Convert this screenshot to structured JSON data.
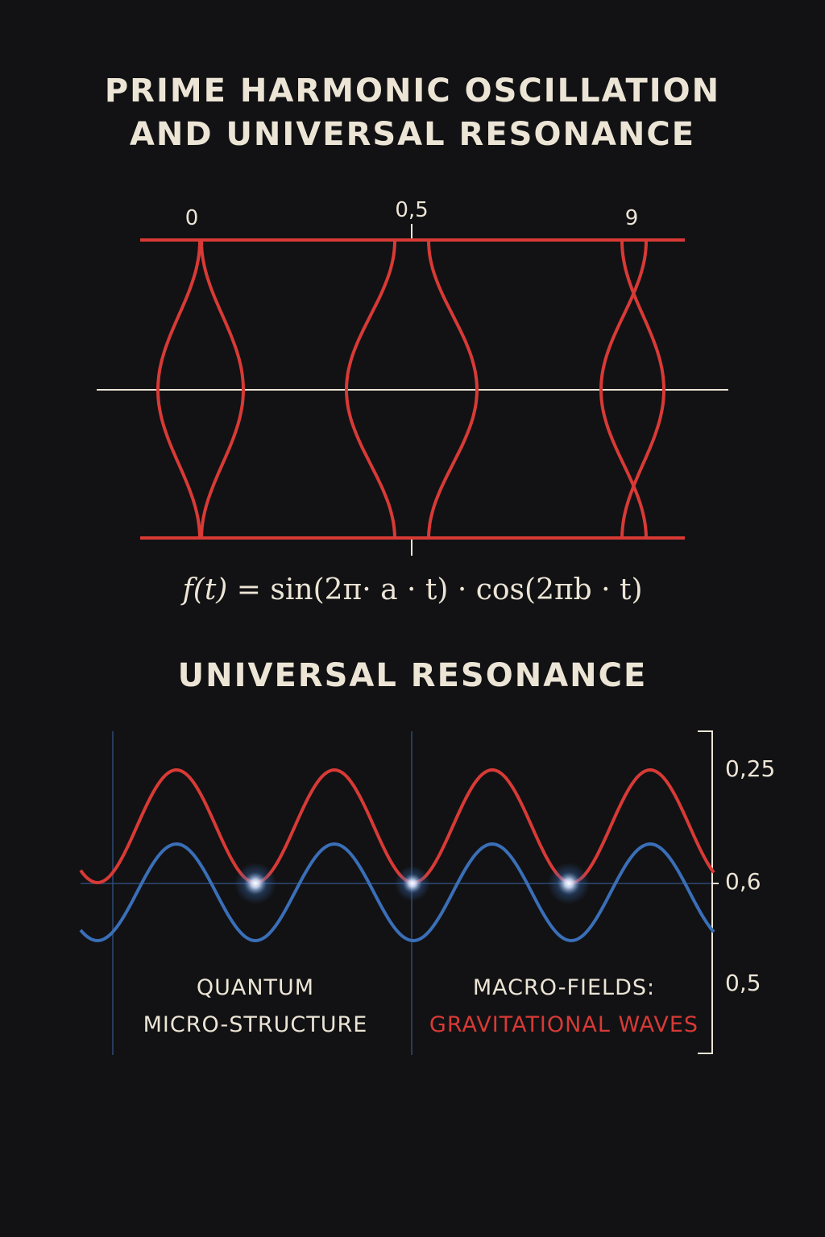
{
  "titles": {
    "line1": "PRIME HARMONIC OSCILLATION",
    "line2": "AND UNIVERSAL RESONANCE",
    "section2": "UNIVERSAL RESONANCE"
  },
  "top_diagram": {
    "tick_labels": [
      "0",
      "0,5",
      "9"
    ],
    "formula_fn": "f(t)",
    "formula_rest": " = sin(2π· a · t) · cos(2πb · t)",
    "colors": {
      "curve": "#d83a36",
      "axis": "#ece5d6"
    }
  },
  "bottom_diagram": {
    "axis_labels": [
      "0,25",
      "0,6",
      "0,5"
    ],
    "caption_left": [
      "QUANTUM",
      "MICRO-STRUCTURE"
    ],
    "caption_right": [
      "MACRO-FIELDS:",
      "GRAVITATIONAL WAVES"
    ],
    "colors": {
      "red_wave": "#d83a36",
      "blue_wave": "#3a6fb8",
      "glow": "#ffffff"
    }
  }
}
